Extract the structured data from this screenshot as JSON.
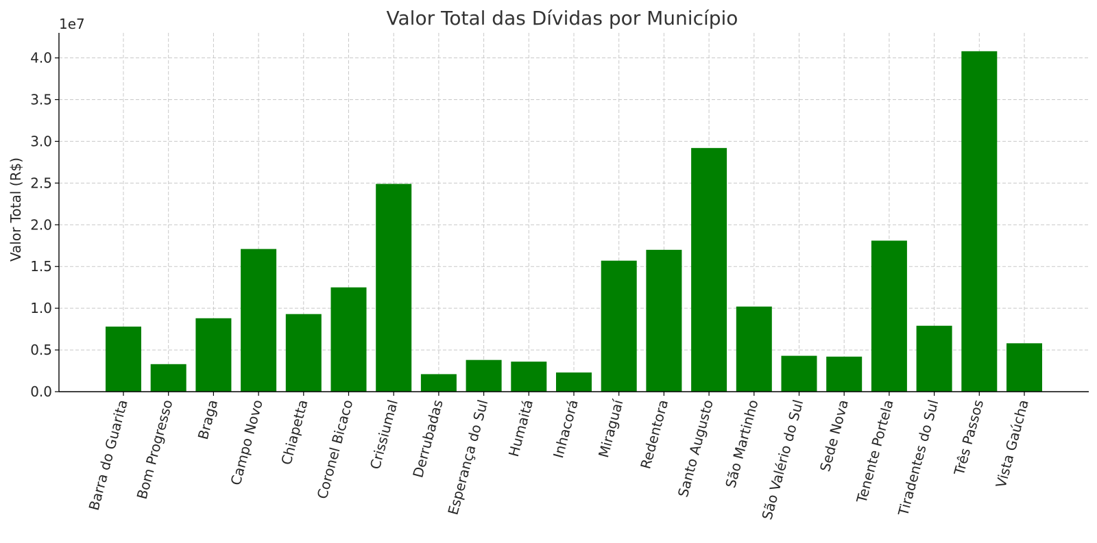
{
  "chart_data": {
    "type": "bar",
    "title": "Valor Total das Dívidas por Município",
    "xlabel": "",
    "ylabel": "Valor Total (R$)",
    "y_offset_label": "1e7",
    "ylim": [
      0,
      4.3
    ],
    "yticks": [
      "0.0",
      "0.5",
      "1.0",
      "1.5",
      "2.0",
      "2.5",
      "3.0",
      "3.5",
      "4.0"
    ],
    "grid": true,
    "bar_color": "#008000",
    "categories": [
      "Barra do Guarita",
      "Bom Progresso",
      "Braga",
      "Campo Novo",
      "Chiapetta",
      "Coronel Bicaco",
      "Crissiumal",
      "Derrubadas",
      "Esperança do Sul",
      "Humaitá",
      "Inhacorá",
      "Miraguaí",
      "Redentora",
      "Santo Augusto",
      "São Martinho",
      "São Valério do Sul",
      "Sede Nova",
      "Tenente Portela",
      "Tiradentes do Sul",
      "Três Passos",
      "Vista Gaúcha"
    ],
    "values": [
      0.78,
      0.33,
      0.88,
      1.71,
      0.93,
      1.25,
      2.49,
      0.21,
      0.38,
      0.36,
      0.23,
      1.57,
      1.7,
      2.92,
      1.02,
      0.43,
      0.42,
      1.81,
      0.79,
      4.08,
      0.58
    ]
  }
}
